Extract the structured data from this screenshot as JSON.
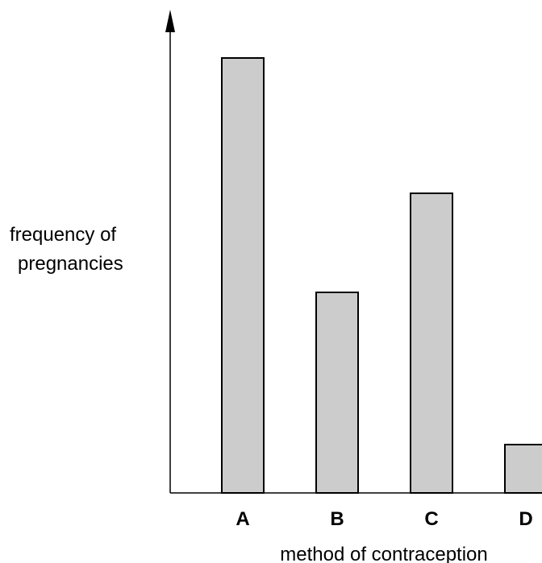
{
  "chart_data": {
    "type": "bar",
    "categories": [
      "A",
      "B",
      "C",
      "D"
    ],
    "values": [
      90,
      41.5,
      62,
      10
    ],
    "ylabel": "frequency of pregnancies",
    "ylabel_lines": [
      "frequency of",
      "pregnancies"
    ],
    "xlabel": "method of contraception",
    "ylim": [
      0,
      100
    ],
    "grid": false,
    "y_ticks_shown": false,
    "colors": {
      "bar_fill": "#cccccc",
      "bar_stroke": "#000000",
      "axis": "#000000"
    }
  }
}
